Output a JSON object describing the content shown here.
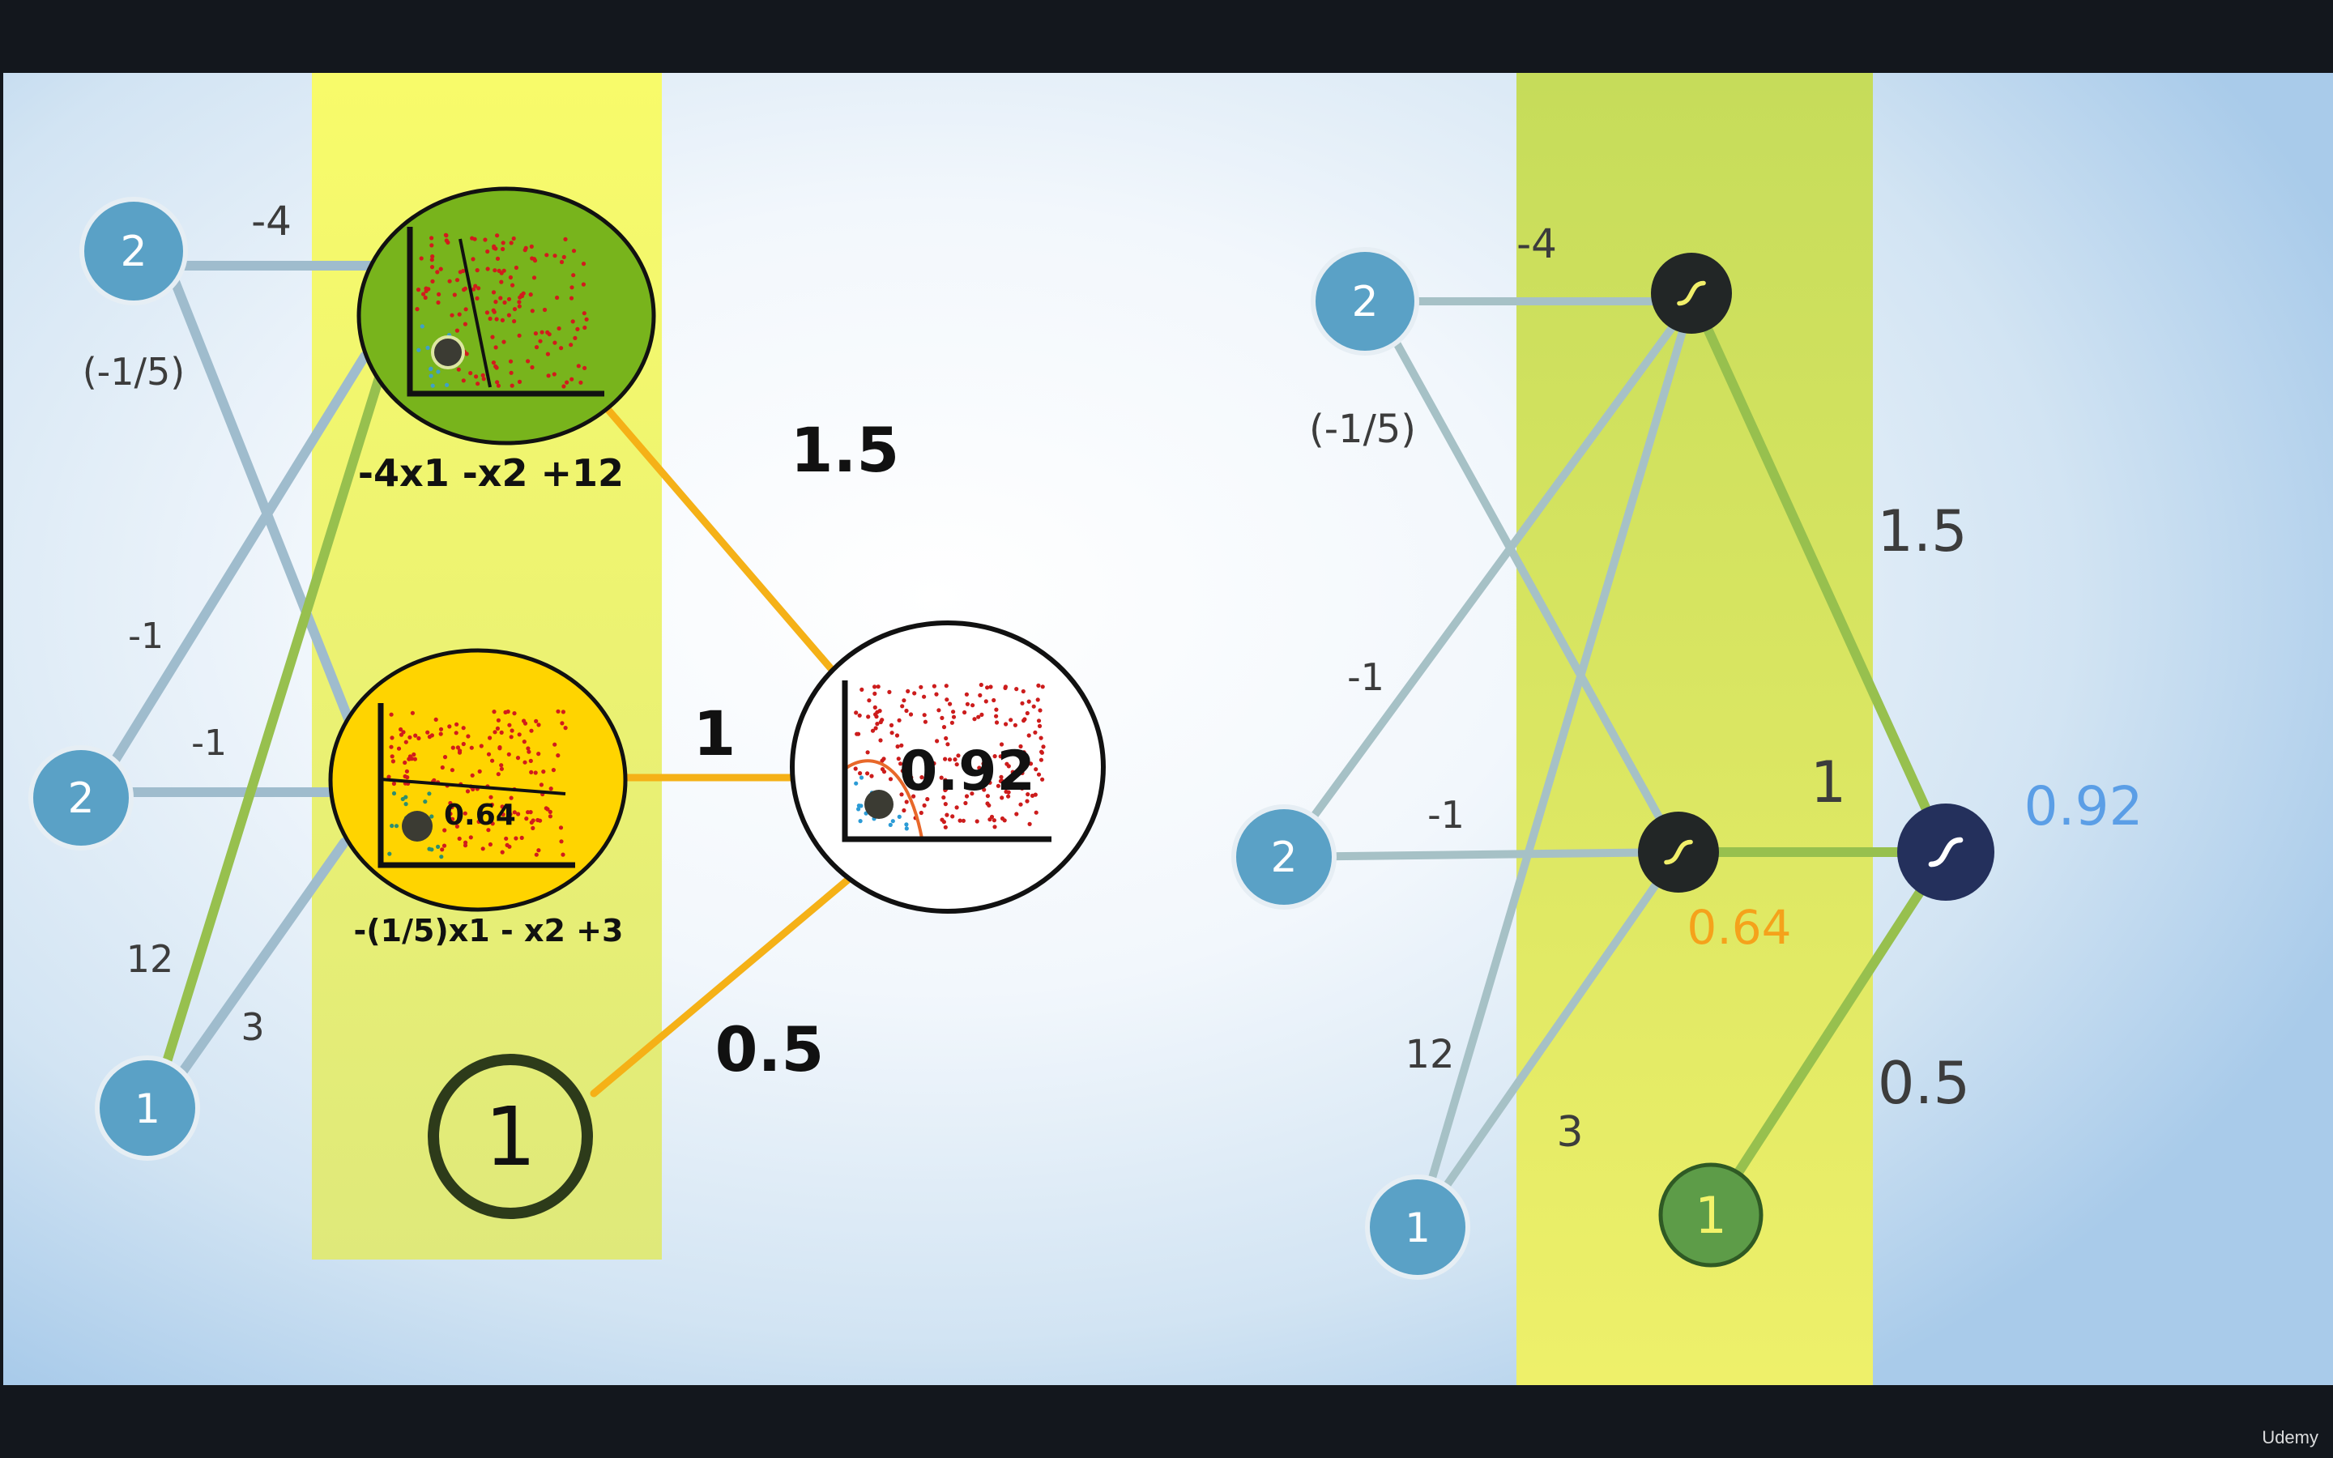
{
  "colors": {
    "input_node": "#5aa1c6",
    "edge_gray": "#9fbccd",
    "edge_green": "#97c04e",
    "edge_orange": "#f5b117",
    "band_yellow": "#f3f36a",
    "node_green": "#78b41c",
    "node_yellow": "#ffd400",
    "sigmoid_dark": "#222626",
    "output_navy": "#24305c",
    "bias_green": "#5d9c48",
    "label_orange": "#f5a21b",
    "label_blue": "#5b9ee6"
  },
  "left_diagram": {
    "inputs": [
      "2",
      "2",
      "1"
    ],
    "bias": "1",
    "weights": {
      "w_top_top": "-4",
      "w_top_cross": "(-1/5)",
      "w_mid_up": "-1",
      "w_mid_mid": "-1",
      "w_bot_up": "12",
      "w_bot_mid": "3",
      "w_out_top": "1.5",
      "w_out_mid": "1",
      "w_out_bias": "0.5"
    },
    "hidden_top_equation": "-4x1 -x2 +12",
    "hidden_bottom_equation": "-(1/5)x1 - x2 +3",
    "hidden_bottom_value": "0.64",
    "output_value": "0.92"
  },
  "right_diagram": {
    "inputs": [
      "2",
      "2",
      "1"
    ],
    "bias": "1",
    "weights": {
      "w_top_top": "-4",
      "w_top_cross": "(-1/5)",
      "w_mid_up": "-1",
      "w_mid_mid": "-1",
      "w_bot_up": "12",
      "w_bot_mid": "3",
      "w_out_top": "1.5",
      "w_out_mid": "1",
      "w_out_bias": "0.5"
    },
    "hidden_value": "0.64",
    "output_value": "0.92"
  },
  "icons": {
    "sigmoid": "sigmoid-icon"
  },
  "watermark": "Udemy"
}
